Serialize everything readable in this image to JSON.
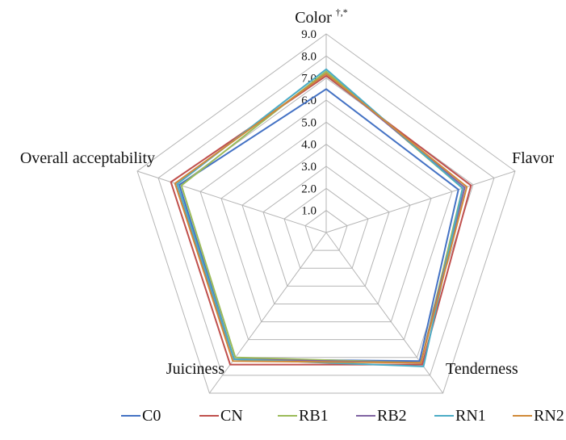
{
  "chart_data": {
    "type": "radar",
    "axes": [
      {
        "label": "Color",
        "superscript": "†,*"
      },
      {
        "label": "Flavor",
        "superscript": ""
      },
      {
        "label": "Tenderness",
        "superscript": ""
      },
      {
        "label": "Juiciness",
        "superscript": ""
      },
      {
        "label": "Overall acceptability",
        "superscript": ""
      }
    ],
    "scale": {
      "min": 0,
      "max": 9,
      "ticks": [
        "1.0",
        "2.0",
        "3.0",
        "4.0",
        "5.0",
        "6.0",
        "7.0",
        "8.0",
        "9.0"
      ]
    },
    "grid": true,
    "legend_position": "bottom",
    "series": [
      {
        "name": "C0",
        "color": "#4472C4",
        "values": [
          6.5,
          6.3,
          7.2,
          7.1,
          7.0
        ]
      },
      {
        "name": "CN",
        "color": "#C0504D",
        "values": [
          7.1,
          6.9,
          7.4,
          7.4,
          7.4
        ]
      },
      {
        "name": "RB1",
        "color": "#9BBB59",
        "values": [
          7.3,
          6.5,
          7.3,
          7.0,
          6.9
        ]
      },
      {
        "name": "RB2",
        "color": "#8064A2",
        "values": [
          7.2,
          6.6,
          7.3,
          7.1,
          7.2
        ]
      },
      {
        "name": "RN1",
        "color": "#4BACC6",
        "values": [
          7.4,
          6.5,
          7.5,
          7.1,
          7.1
        ]
      },
      {
        "name": "RN2",
        "color": "#D08A38",
        "values": [
          7.2,
          6.7,
          7.3,
          7.2,
          7.2
        ]
      }
    ]
  }
}
